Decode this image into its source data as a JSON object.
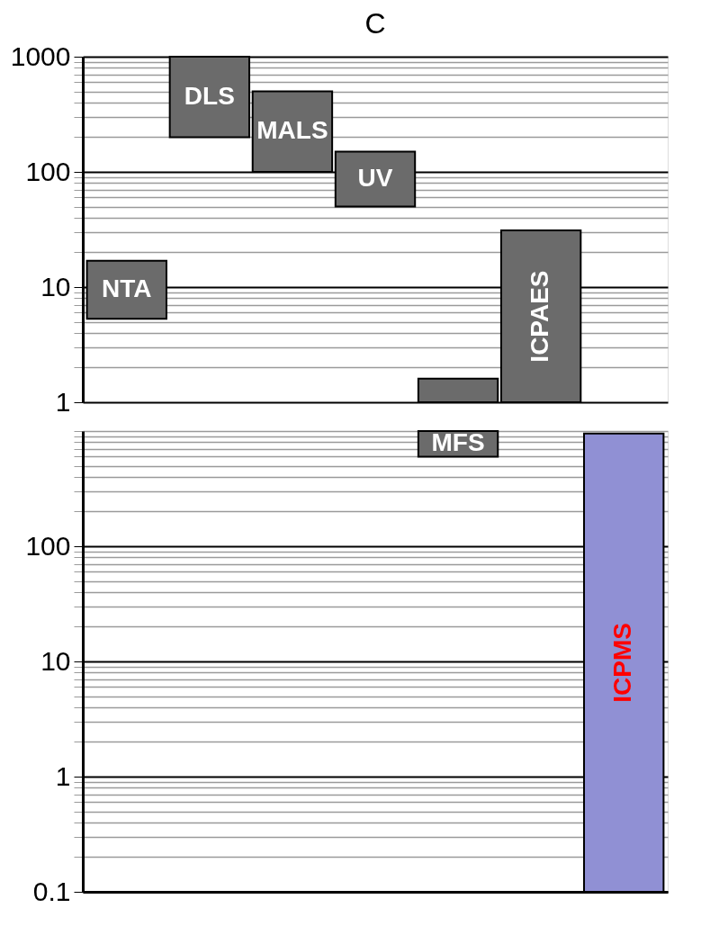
{
  "chart_data": [
    {
      "type": "bar",
      "title": "C",
      "categories": [
        "NTA",
        "DLS",
        "MALS",
        "UV",
        null,
        "ICPAES",
        null
      ],
      "base": [
        5.3,
        200,
        100,
        50,
        1,
        1,
        null
      ],
      "values": [
        11.6,
        800,
        400,
        100,
        0.6,
        30,
        null
      ],
      "colors": [
        "#6b6b6b",
        "#6b6b6b",
        "#6b6b6b",
        "#6b6b6b",
        "#6b6b6b",
        "#6b6b6b",
        "#9090d4"
      ],
      "log": true,
      "ylim": [
        1,
        1000
      ],
      "yticks": [
        1,
        {
          "value": 2,
          "label": null
        },
        {
          "value": 3,
          "label": null
        },
        {
          "value": 4,
          "label": null
        },
        {
          "value": 5,
          "label": null
        },
        {
          "value": 6,
          "label": null
        },
        {
          "value": 7,
          "label": null
        },
        {
          "value": 8,
          "label": null
        },
        {
          "value": 9,
          "label": null
        },
        10,
        {
          "value": 20,
          "label": null
        },
        {
          "value": 30,
          "label": null
        },
        {
          "value": 40,
          "label": null
        },
        {
          "value": 50,
          "label": null
        },
        {
          "value": 60,
          "label": null
        },
        {
          "value": 70,
          "label": null
        },
        {
          "value": 80,
          "label": null
        },
        {
          "value": 90,
          "label": null
        },
        100,
        {
          "value": 200,
          "label": null
        },
        {
          "value": 300,
          "label": null
        },
        {
          "value": 400,
          "label": null
        },
        {
          "value": 500,
          "label": null
        },
        {
          "value": 600,
          "label": null
        },
        {
          "value": 700,
          "label": null
        },
        {
          "value": 800,
          "label": null
        },
        {
          "value": 900,
          "label": null
        },
        1000
      ],
      "grid": "y",
      "tick_labels": "y"
    },
    {
      "type": "bar",
      "categories": [
        null,
        null,
        null,
        null,
        "MFS",
        null,
        "ICPMS"
      ],
      "base": [
        null,
        null,
        null,
        null,
        600,
        null,
        0.1
      ],
      "values": [
        null,
        null,
        null,
        null,
        400,
        null,
        950
      ],
      "colors": [
        "#6b6b6b",
        "#6b6b6b",
        "#6b6b6b",
        "#6b6b6b",
        "#6b6b6b",
        "#6b6b6b",
        "#9090d4"
      ],
      "log": true,
      "ylim": [
        0.1,
        1000
      ],
      "yticks": [
        0.1,
        {
          "value": 0.2,
          "label": null
        },
        {
          "value": 0.3,
          "label": null
        },
        {
          "value": 0.4,
          "label": null
        },
        {
          "value": 0.5,
          "label": null
        },
        {
          "value": 0.6,
          "label": null
        },
        {
          "value": 0.7,
          "label": null
        },
        {
          "value": 0.8,
          "label": null
        },
        {
          "value": 0.9,
          "label": null
        },
        1,
        {
          "value": 2,
          "label": null
        },
        {
          "value": 3,
          "label": null
        },
        {
          "value": 4,
          "label": null
        },
        {
          "value": 5,
          "label": null
        },
        {
          "value": 6,
          "label": null
        },
        {
          "value": 7,
          "label": null
        },
        {
          "value": 8,
          "label": null
        },
        {
          "value": 9,
          "label": null
        },
        10,
        {
          "value": 20,
          "label": null
        },
        {
          "value": 30,
          "label": null
        },
        {
          "value": 40,
          "label": null
        },
        {
          "value": 50,
          "label": null
        },
        {
          "value": 60,
          "label": null
        },
        {
          "value": 70,
          "label": null
        },
        {
          "value": 80,
          "label": null
        },
        {
          "value": 90,
          "label": null
        },
        100,
        {
          "value": 200,
          "label": null
        },
        {
          "value": 300,
          "label": null
        },
        {
          "value": 400,
          "label": null
        },
        {
          "value": 500,
          "label": null
        },
        {
          "value": 600,
          "label": null
        },
        {
          "value": 700,
          "label": null
        },
        {
          "value": 800,
          "label": null
        },
        {
          "value": 900,
          "label": null
        },
        {
          "value": 1000,
          "label": null
        }
      ],
      "grid": "y",
      "tick_labels": "y"
    }
  ]
}
